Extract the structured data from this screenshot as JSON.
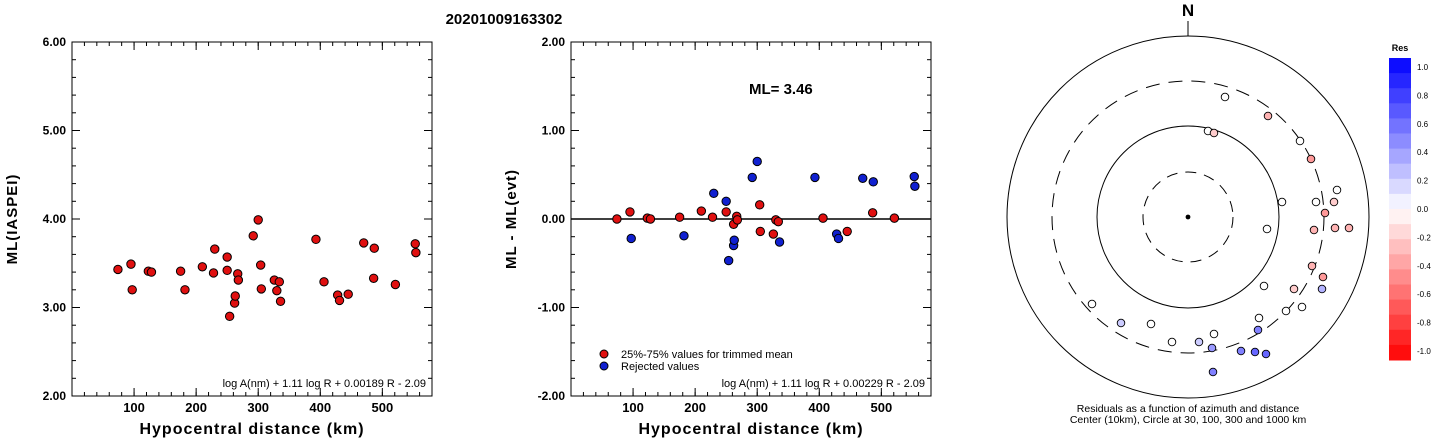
{
  "title": "20201009163302",
  "chart_data": [
    {
      "type": "scatter",
      "ylabel": "ML(IASPEI)",
      "xlabel": "Hypocentral distance (km)",
      "xlim": [
        0,
        580
      ],
      "ylim": [
        2.0,
        6.0
      ],
      "xticks": [
        "100",
        "200",
        "300",
        "400",
        "500"
      ],
      "yticks": [
        "2.00",
        "3.00",
        "4.00",
        "5.00",
        "6.00"
      ],
      "formula": "log A(nm) + 1.11 log R + 0.00189 R - 2.09",
      "series": [
        {
          "color": "#e01010",
          "points": [
            [
              74,
              3.43
            ],
            [
              95,
              3.49
            ],
            [
              97,
              3.2
            ],
            [
              123,
              3.41
            ],
            [
              128,
              3.4
            ],
            [
              175,
              3.41
            ],
            [
              182,
              3.2
            ],
            [
              210,
              3.46
            ],
            [
              228,
              3.39
            ],
            [
              230,
              3.66
            ],
            [
              250,
              3.57
            ],
            [
              250,
              3.42
            ],
            [
              254,
              2.9
            ],
            [
              262,
              3.05
            ],
            [
              263,
              3.13
            ],
            [
              267,
              3.38
            ],
            [
              268,
              3.31
            ],
            [
              292,
              3.81
            ],
            [
              300,
              3.99
            ],
            [
              304,
              3.48
            ],
            [
              305,
              3.21
            ],
            [
              326,
              3.31
            ],
            [
              330,
              3.19
            ],
            [
              334,
              3.29
            ],
            [
              336,
              3.07
            ],
            [
              393,
              3.77
            ],
            [
              406,
              3.29
            ],
            [
              428,
              3.14
            ],
            [
              431,
              3.08
            ],
            [
              445,
              3.15
            ],
            [
              470,
              3.73
            ],
            [
              486,
              3.33
            ],
            [
              487,
              3.67
            ],
            [
              521,
              3.26
            ],
            [
              553,
              3.72
            ],
            [
              554,
              3.62
            ]
          ]
        }
      ]
    },
    {
      "type": "scatter",
      "ylabel": "ML - ML(evt)",
      "xlabel": "Hypocentral distance (km)",
      "xlim": [
        0,
        580
      ],
      "ylim": [
        -2.0,
        2.0
      ],
      "xticks": [
        "100",
        "200",
        "300",
        "400",
        "500"
      ],
      "yticks": [
        "-2.00",
        "-1.00",
        "0.00",
        "1.00",
        "2.00"
      ],
      "annotation": "ML= 3.46",
      "formula": "log A(nm) + 1.11 log R + 0.00229 R - 2.09",
      "legend": [
        "25%-75% values for trimmed mean",
        "Rejected values"
      ],
      "series": [
        {
          "name": "25%-75% values for trimmed mean",
          "color": "#e01010",
          "points": [
            [
              74,
              0.0
            ],
            [
              95,
              0.08
            ],
            [
              123,
              0.01
            ],
            [
              128,
              0.0
            ],
            [
              175,
              0.02
            ],
            [
              210,
              0.09
            ],
            [
              228,
              0.02
            ],
            [
              250,
              0.08
            ],
            [
              262,
              -0.06
            ],
            [
              267,
              0.03
            ],
            [
              268,
              -0.01
            ],
            [
              304,
              0.16
            ],
            [
              305,
              -0.14
            ],
            [
              326,
              -0.17
            ],
            [
              330,
              -0.01
            ],
            [
              334,
              -0.03
            ],
            [
              406,
              0.01
            ],
            [
              445,
              -0.14
            ],
            [
              486,
              0.07
            ],
            [
              521,
              0.01
            ]
          ]
        },
        {
          "name": "Rejected values",
          "color": "#1020d0",
          "points": [
            [
              97,
              -0.22
            ],
            [
              182,
              -0.19
            ],
            [
              230,
              0.29
            ],
            [
              250,
              0.2
            ],
            [
              254,
              -0.47
            ],
            [
              262,
              -0.3
            ],
            [
              263,
              -0.24
            ],
            [
              292,
              0.47
            ],
            [
              300,
              0.65
            ],
            [
              336,
              -0.26
            ],
            [
              393,
              0.47
            ],
            [
              428,
              -0.17
            ],
            [
              431,
              -0.22
            ],
            [
              470,
              0.46
            ],
            [
              487,
              0.42
            ],
            [
              553,
              0.48
            ],
            [
              554,
              0.37
            ]
          ]
        }
      ]
    },
    {
      "type": "scatter",
      "subtype": "polar",
      "north_label": "N",
      "caption": [
        "Residuals as a function of azimuth and distance",
        "Center (10km), Circle at 30, 100, 300 and 1000 km"
      ],
      "colorbar_title": "Res",
      "colorbar_ticks": [
        "1.0",
        "0.8",
        "0.6",
        "0.4",
        "0.2",
        "0.0",
        "-0.2",
        "-0.4",
        "-0.6",
        "-0.8",
        "-1.0"
      ],
      "points": [
        [
          1225,
          97,
          0.0
        ],
        [
          1208,
          131,
          0.0
        ],
        [
          1214,
          133,
          -0.2
        ],
        [
          1268,
          116,
          -0.3
        ],
        [
          1300,
          141,
          0.0
        ],
        [
          1311,
          159,
          -0.4
        ],
        [
          1337,
          190,
          0.0
        ],
        [
          1316,
          202,
          0.0
        ],
        [
          1334,
          202,
          -0.2
        ],
        [
          1282,
          202,
          0.0
        ],
        [
          1325,
          213,
          -0.4
        ],
        [
          1335,
          228,
          -0.3
        ],
        [
          1314,
          230,
          -0.3
        ],
        [
          1267,
          229,
          0.0
        ],
        [
          1349,
          228,
          -0.3
        ],
        [
          1312,
          266,
          -0.3
        ],
        [
          1323,
          277,
          -0.4
        ],
        [
          1322,
          289,
          0.3
        ],
        [
          1264,
          286,
          0.0
        ],
        [
          1294,
          289,
          -0.2
        ],
        [
          1302,
          307,
          0.0
        ],
        [
          1092,
          304,
          0.0
        ],
        [
          1121,
          323,
          0.2
        ],
        [
          1151,
          324,
          0.0
        ],
        [
          1259,
          318,
          0.0
        ],
        [
          1286,
          311,
          0.0
        ],
        [
          1214,
          334,
          0.0
        ],
        [
          1258,
          330,
          0.5
        ],
        [
          1172,
          342,
          0.0
        ],
        [
          1199,
          342,
          0.2
        ],
        [
          1212,
          348,
          0.4
        ],
        [
          1241,
          351,
          0.5
        ],
        [
          1255,
          352,
          0.6
        ],
        [
          1266,
          354,
          0.6
        ],
        [
          1213,
          372,
          0.5
        ]
      ]
    }
  ]
}
